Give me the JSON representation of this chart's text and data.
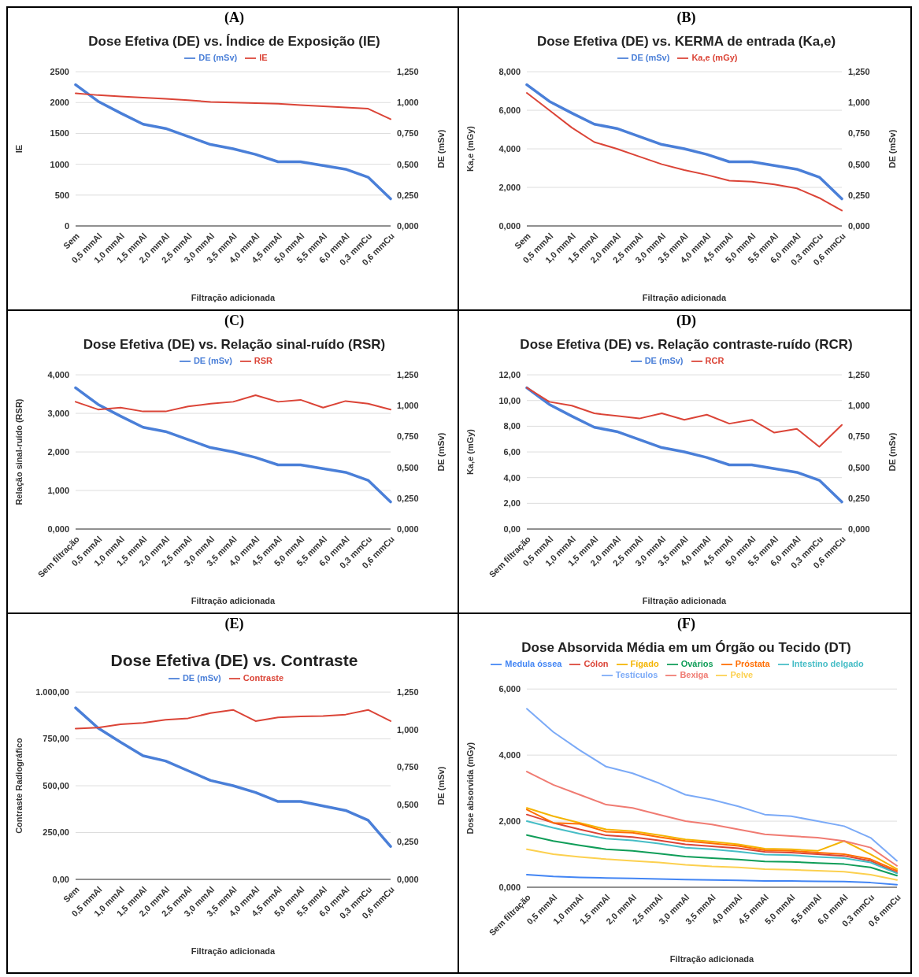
{
  "chart_data": [
    {
      "type": "line",
      "title": "Dose Efetiva (DE) vs. Índice de Exposição (IE)",
      "annotations": [
        "(A)"
      ],
      "xlabel": "Filtração adicionada",
      "ylabel": "IE",
      "y2label": "DE (mSv)",
      "categories": [
        "Sem",
        "0,5 mmAl",
        "1,0 mmAl",
        "1,5 mmAl",
        "2,0 mmAl",
        "2,5 mmAl",
        "3,0 mmAl",
        "3,5 mmAl",
        "4,0 mmAl",
        "4,5 mmAl",
        "5,0 mmAl",
        "5,5 mmAl",
        "6,0 mmAl",
        "0,3 mmCu",
        "0,6 mmCu"
      ],
      "series": [
        {
          "name": "DE (mSv)",
          "color": "#4a7fd8",
          "axis": "y2",
          "values": [
            1.145,
            1.01,
            0.915,
            0.825,
            0.79,
            0.725,
            0.66,
            0.625,
            0.58,
            0.52,
            0.52,
            0.49,
            0.46,
            0.395,
            0.22
          ]
        },
        {
          "name": "IE",
          "color": "#db4437",
          "values": [
            2150,
            2120,
            2100,
            2080,
            2060,
            2040,
            2010,
            2000,
            1990,
            1980,
            1960,
            1940,
            1920,
            1900,
            1730
          ]
        }
      ],
      "ylim": [
        0,
        2500
      ],
      "yticks": [
        0,
        500,
        1000,
        1500,
        2000,
        2500
      ],
      "y2lim": [
        0,
        1.25
      ],
      "y2ticks": [
        {
          "value": 0,
          "label": "0,000"
        },
        {
          "value": 0.25,
          "label": "0,250"
        },
        {
          "value": 0.5,
          "label": "0,500"
        },
        {
          "value": 0.75,
          "label": "0,750"
        },
        {
          "value": 1,
          "label": "1,000"
        },
        {
          "value": 1.25,
          "label": "1,250"
        }
      ],
      "grid": "y",
      "legend": "top"
    },
    {
      "type": "line",
      "title": "Dose Efetiva (DE) vs. KERMA de entrada (Ka,e)",
      "annotations": [
        "(B)"
      ],
      "xlabel": "Filtração adicionada",
      "ylabel": "Ka,e (mGy)",
      "y2label": "DE (mSv)",
      "categories": [
        "Sem",
        "0,5 mmAl",
        "1,0 mmAl",
        "1,5 mmAl",
        "2,0 mmAl",
        "2,5 mmAl",
        "3,0 mmAl",
        "3,5 mmAl",
        "4,0 mmAl",
        "4,5 mmAl",
        "5,0 mmAl",
        "5,5 mmAl",
        "6,0 mmAl",
        "0,3 mmCu",
        "0,6 mmCu"
      ],
      "series": [
        {
          "name": "DE (mSv)",
          "color": "#4a7fd8",
          "axis": "y2",
          "values": [
            1.145,
            1.01,
            0.915,
            0.825,
            0.79,
            0.725,
            0.66,
            0.625,
            0.58,
            0.52,
            0.52,
            0.49,
            0.46,
            0.395,
            0.22
          ]
        },
        {
          "name": "Ka,e (mGy)",
          "color": "#db4437",
          "values": [
            6.9,
            6.0,
            5.1,
            4.35,
            4.0,
            3.6,
            3.2,
            2.9,
            2.65,
            2.35,
            2.3,
            2.15,
            1.95,
            1.45,
            0.8
          ]
        }
      ],
      "ylim": [
        0,
        8
      ],
      "yticks": [
        {
          "value": 0,
          "label": "0,000"
        },
        {
          "value": 2,
          "label": "2,000"
        },
        {
          "value": 4,
          "label": "4,000"
        },
        {
          "value": 6,
          "label": "6,000"
        },
        {
          "value": 8,
          "label": "8,000"
        }
      ],
      "y2lim": [
        0,
        1.25
      ],
      "y2ticks": [
        {
          "value": 0,
          "label": "0,000"
        },
        {
          "value": 0.25,
          "label": "0,250"
        },
        {
          "value": 0.5,
          "label": "0,500"
        },
        {
          "value": 0.75,
          "label": "0,750"
        },
        {
          "value": 1,
          "label": "1,000"
        },
        {
          "value": 1.25,
          "label": "1,250"
        }
      ],
      "grid": "y",
      "legend": "top"
    },
    {
      "type": "line",
      "title": "Dose Efetiva (DE) vs. Relação sinal-ruído (RSR)",
      "annotations": [
        "(C)"
      ],
      "xlabel": "Filtração adicionada",
      "ylabel": "Relação sinal-ruído (RSR)",
      "y2label": "DE (mSv)",
      "categories": [
        "Sem filtração",
        "0,5 mmAl",
        "1,0 mmAl",
        "1,5 mmAl",
        "2,0 mmAl",
        "2,5 mmAl",
        "3,0 mmAl",
        "3,5 mmAl",
        "4,0 mmAl",
        "4,5 mmAl",
        "5,0 mmAl",
        "5,5 mmAl",
        "6,0 mmAl",
        "0,3 mmCu",
        "0,6 mmCu"
      ],
      "series": [
        {
          "name": "DE (mSv)",
          "color": "#4a7fd8",
          "axis": "y2",
          "values": [
            1.145,
            1.01,
            0.915,
            0.825,
            0.79,
            0.725,
            0.66,
            0.625,
            0.58,
            0.52,
            0.52,
            0.49,
            0.46,
            0.395,
            0.22
          ]
        },
        {
          "name": "RSR",
          "color": "#db4437",
          "values": [
            3.3,
            3.1,
            3.15,
            3.05,
            3.05,
            3.18,
            3.25,
            3.3,
            3.47,
            3.3,
            3.35,
            3.15,
            3.32,
            3.25,
            3.1
          ]
        }
      ],
      "ylim": [
        0,
        4
      ],
      "yticks": [
        {
          "value": 0,
          "label": "0,000"
        },
        {
          "value": 1,
          "label": "1,000"
        },
        {
          "value": 2,
          "label": "2,000"
        },
        {
          "value": 3,
          "label": "3,000"
        },
        {
          "value": 4,
          "label": "4,000"
        }
      ],
      "y2lim": [
        0,
        1.25
      ],
      "y2ticks": [
        {
          "value": 0,
          "label": "0,000"
        },
        {
          "value": 0.25,
          "label": "0,250"
        },
        {
          "value": 0.5,
          "label": "0,500"
        },
        {
          "value": 0.75,
          "label": "0,750"
        },
        {
          "value": 1,
          "label": "1,000"
        },
        {
          "value": 1.25,
          "label": "1,250"
        }
      ],
      "grid": "y",
      "legend": "top"
    },
    {
      "type": "line",
      "title": "Dose Efetiva (DE) vs. Relação contraste-ruído (RCR)",
      "annotations": [
        "(D)"
      ],
      "xlabel": "Filtração adicionada",
      "ylabel": "Ka,e (mGy)",
      "y2label": "DE (mSv)",
      "categories": [
        "Sem filtração",
        "0,5 mmAl",
        "1,0 mmAl",
        "1,5 mmAl",
        "2,0 mmAl",
        "2,5 mmAl",
        "3,0 mmAl",
        "3,5 mmAl",
        "4,0 mmAl",
        "4,5 mmAl",
        "5,0 mmAl",
        "5,5 mmAl",
        "6,0 mmAl",
        "0,3 mmCu",
        "0,6 mmCu"
      ],
      "series": [
        {
          "name": "DE (mSv)",
          "color": "#4a7fd8",
          "axis": "y2",
          "values": [
            1.145,
            1.01,
            0.915,
            0.825,
            0.79,
            0.725,
            0.66,
            0.625,
            0.58,
            0.52,
            0.52,
            0.49,
            0.46,
            0.395,
            0.22
          ]
        },
        {
          "name": "RCR",
          "color": "#db4437",
          "values": [
            11.0,
            9.9,
            9.6,
            9.0,
            8.8,
            8.6,
            9.0,
            8.5,
            8.9,
            8.2,
            8.5,
            7.5,
            7.8,
            6.4,
            8.1
          ]
        }
      ],
      "ylim": [
        0,
        12
      ],
      "yticks": [
        {
          "value": 0,
          "label": "0,00"
        },
        {
          "value": 2,
          "label": "2,00"
        },
        {
          "value": 4,
          "label": "4,00"
        },
        {
          "value": 6,
          "label": "6,00"
        },
        {
          "value": 8,
          "label": "8,00"
        },
        {
          "value": 10,
          "label": "10,00"
        },
        {
          "value": 12,
          "label": "12,00"
        }
      ],
      "y2lim": [
        0,
        1.25
      ],
      "y2ticks": [
        {
          "value": 0,
          "label": "0,000"
        },
        {
          "value": 0.25,
          "label": "0,250"
        },
        {
          "value": 0.5,
          "label": "0,500"
        },
        {
          "value": 0.75,
          "label": "0,750"
        },
        {
          "value": 1,
          "label": "1,000"
        },
        {
          "value": 1.25,
          "label": "1,250"
        }
      ],
      "grid": "y",
      "legend": "top"
    },
    {
      "type": "line",
      "title": "Dose Efetiva (DE) vs. Contraste",
      "annotations": [
        "(E)"
      ],
      "xlabel": "Filtração adicionada",
      "ylabel": "Contraste Radiográfico",
      "y2label": "DE (mSv)",
      "categories": [
        "Sem",
        "0,5 mmAl",
        "1,0 mmAl",
        "1,5 mmAl",
        "2,0 mmAl",
        "2,5 mmAl",
        "3,0 mmAl",
        "3,5 mmAl",
        "4,0 mmAl",
        "4,5 mmAl",
        "5,0 mmAl",
        "5,5 mmAl",
        "6,0 mmAl",
        "0,3 mmCu",
        "0,6 mmCu"
      ],
      "series": [
        {
          "name": "DE (mSv)",
          "color": "#4a7fd8",
          "axis": "y2",
          "values": [
            1.145,
            1.01,
            0.915,
            0.825,
            0.79,
            0.725,
            0.66,
            0.625,
            0.58,
            0.52,
            0.52,
            0.49,
            0.46,
            0.395,
            0.22
          ]
        },
        {
          "name": "Contraste",
          "color": "#db4437",
          "values": [
            805,
            810,
            828,
            835,
            852,
            860,
            888,
            905,
            845,
            865,
            870,
            872,
            880,
            905,
            845
          ]
        }
      ],
      "ylim": [
        0,
        1000
      ],
      "yticks": [
        {
          "value": 0,
          "label": "0,00"
        },
        {
          "value": 250,
          "label": "250,00"
        },
        {
          "value": 500,
          "label": "500,00"
        },
        {
          "value": 750,
          "label": "750,00"
        },
        {
          "value": 1000,
          "label": "1.000,00"
        }
      ],
      "y2lim": [
        0,
        1.25
      ],
      "y2ticks": [
        {
          "value": 0,
          "label": "0,000"
        },
        {
          "value": 0.25,
          "label": "0,250"
        },
        {
          "value": 0.5,
          "label": "0,500"
        },
        {
          "value": 0.75,
          "label": "0,750"
        },
        {
          "value": 1,
          "label": "1,000"
        },
        {
          "value": 1.25,
          "label": "1,250"
        }
      ],
      "grid": "y",
      "legend": "top"
    },
    {
      "type": "line",
      "title": "Dose Absorvida Média em um Órgão ou Tecido (DT)",
      "annotations": [
        "(F)"
      ],
      "xlabel": "Filtração adicionada",
      "ylabel": "Dose absorvida (mGy)",
      "categories": [
        "Sem filtração",
        "0,5 mmAl",
        "1,0 mmAl",
        "1,5 mmAl",
        "2,0 mmAl",
        "2,5 mmAl",
        "3,0 mmAl",
        "3,5 mmAl",
        "4,0 mmAl",
        "4,5 mmAl",
        "5,0 mmAl",
        "5,5 mmAl",
        "6,0 mmAl",
        "0,3 mmCu",
        "0,6 mmCu"
      ],
      "series": [
        {
          "name": "Medula óssea",
          "color": "#4285f4",
          "values": [
            0.38,
            0.33,
            0.3,
            0.28,
            0.27,
            0.25,
            0.23,
            0.22,
            0.21,
            0.19,
            0.19,
            0.18,
            0.17,
            0.14,
            0.08
          ]
        },
        {
          "name": "Cólon",
          "color": "#db4437",
          "values": [
            2.2,
            1.95,
            1.75,
            1.57,
            1.52,
            1.42,
            1.3,
            1.24,
            1.18,
            1.07,
            1.05,
            1.0,
            0.95,
            0.8,
            0.45
          ]
        },
        {
          "name": "Fígado",
          "color": "#f4b400",
          "values": [
            2.4,
            2.15,
            1.95,
            1.75,
            1.7,
            1.58,
            1.45,
            1.38,
            1.3,
            1.17,
            1.15,
            1.1,
            1.4,
            1.0,
            0.55
          ]
        },
        {
          "name": "Ovários",
          "color": "#0f9d58",
          "values": [
            1.58,
            1.4,
            1.27,
            1.15,
            1.1,
            1.02,
            0.93,
            0.88,
            0.84,
            0.78,
            0.77,
            0.73,
            0.7,
            0.6,
            0.35
          ]
        },
        {
          "name": "Próstata",
          "color": "#ff6d01",
          "values": [
            2.35,
            1.95,
            1.92,
            1.68,
            1.65,
            1.52,
            1.4,
            1.33,
            1.25,
            1.12,
            1.1,
            1.05,
            1.0,
            0.85,
            0.5
          ]
        },
        {
          "name": "Intestino delgado",
          "color": "#46bdc6",
          "values": [
            2.0,
            1.8,
            1.62,
            1.47,
            1.42,
            1.32,
            1.2,
            1.15,
            1.08,
            0.99,
            0.97,
            0.92,
            0.88,
            0.75,
            0.42
          ]
        },
        {
          "name": "Testículos",
          "color": "#7baaf7",
          "values": [
            5.4,
            4.7,
            4.15,
            3.65,
            3.45,
            3.15,
            2.8,
            2.65,
            2.45,
            2.2,
            2.15,
            2.0,
            1.85,
            1.5,
            0.8
          ]
        },
        {
          "name": "Bexiga",
          "color": "#f07b72",
          "values": [
            3.5,
            3.1,
            2.8,
            2.5,
            2.4,
            2.2,
            2.0,
            1.9,
            1.75,
            1.6,
            1.55,
            1.5,
            1.4,
            1.2,
            0.65
          ]
        },
        {
          "name": "Pelve",
          "color": "#fcd04f",
          "values": [
            1.15,
            1.0,
            0.92,
            0.85,
            0.8,
            0.75,
            0.68,
            0.63,
            0.6,
            0.55,
            0.53,
            0.5,
            0.47,
            0.38,
            0.22
          ]
        }
      ],
      "ylim": [
        0,
        6
      ],
      "yticks": [
        {
          "value": 0,
          "label": "0,000"
        },
        {
          "value": 2,
          "label": "2,000"
        },
        {
          "value": 4,
          "label": "4,000"
        },
        {
          "value": 6,
          "label": "6,000"
        }
      ],
      "grid": "y",
      "legend": "top"
    }
  ]
}
